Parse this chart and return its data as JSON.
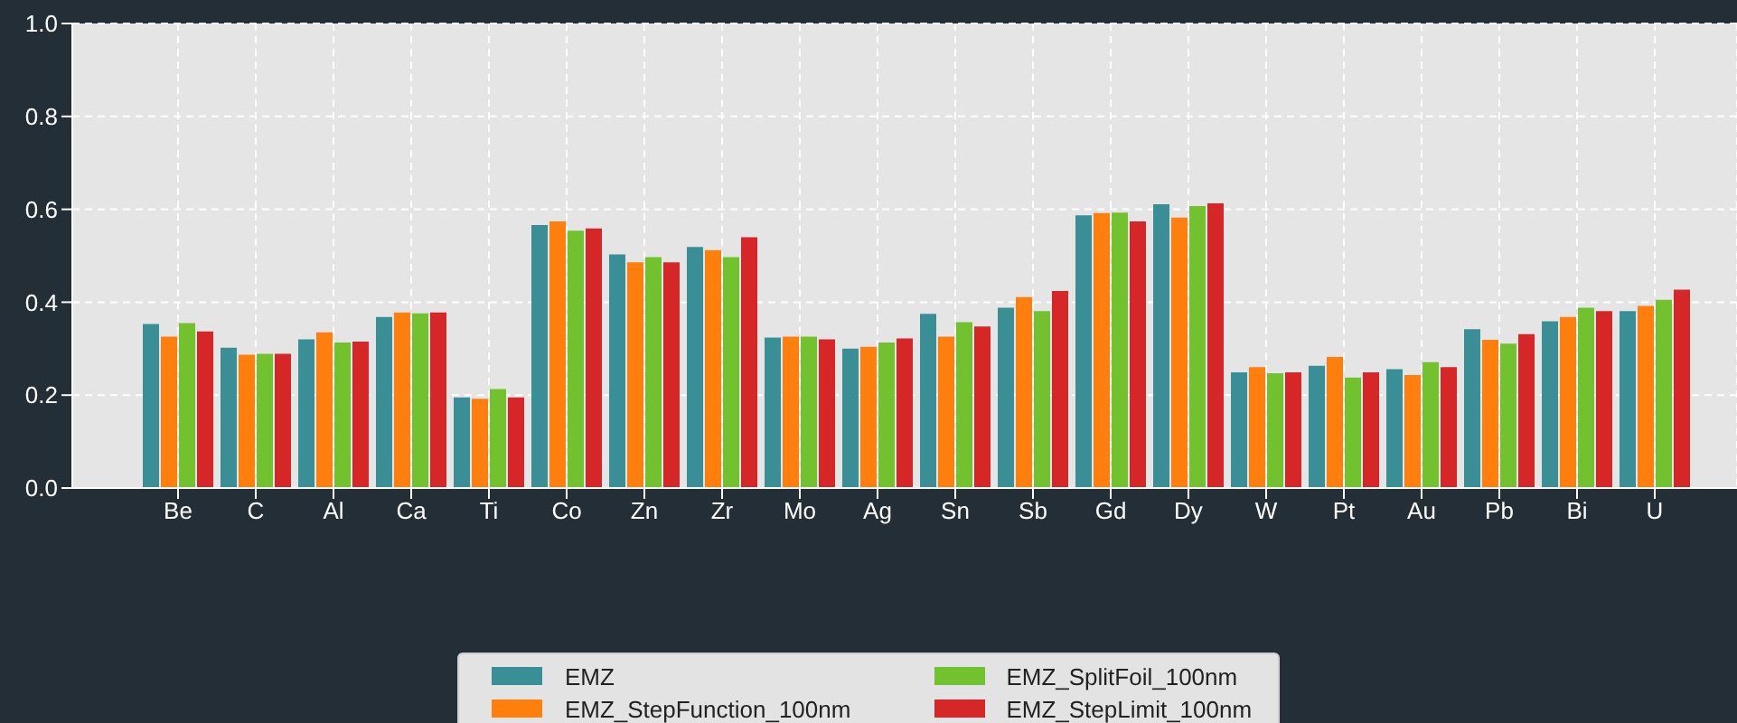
{
  "chart_data": {
    "type": "bar",
    "categories": [
      "Be",
      "C",
      "Al",
      "Ca",
      "Ti",
      "Co",
      "Zn",
      "Zr",
      "Mo",
      "Ag",
      "Sn",
      "Sb",
      "Gd",
      "Dy",
      "W",
      "Pt",
      "Au",
      "Pb",
      "Bi",
      "U"
    ],
    "series": [
      {
        "name": "EMZ",
        "color": "#3a8f96",
        "values": [
          0.353,
          0.302,
          0.32,
          0.368,
          0.195,
          0.566,
          0.503,
          0.519,
          0.324,
          0.3,
          0.375,
          0.388,
          0.587,
          0.611,
          0.249,
          0.263,
          0.256,
          0.342,
          0.359,
          0.381
        ]
      },
      {
        "name": "EMZ_StepFunction_100nm",
        "color": "#ff7f0e",
        "values": [
          0.326,
          0.287,
          0.335,
          0.378,
          0.192,
          0.574,
          0.486,
          0.512,
          0.326,
          0.304,
          0.326,
          0.411,
          0.592,
          0.582,
          0.26,
          0.282,
          0.243,
          0.319,
          0.368,
          0.392
        ]
      },
      {
        "name": "EMZ_SplitFoil_100nm",
        "color": "#72c12f",
        "values": [
          0.355,
          0.289,
          0.313,
          0.376,
          0.213,
          0.554,
          0.497,
          0.497,
          0.326,
          0.313,
          0.357,
          0.381,
          0.593,
          0.607,
          0.247,
          0.238,
          0.271,
          0.311,
          0.388,
          0.405
        ]
      },
      {
        "name": "EMZ_StepLimit_100nm",
        "color": "#d62728",
        "values": [
          0.337,
          0.289,
          0.315,
          0.378,
          0.195,
          0.559,
          0.486,
          0.54,
          0.32,
          0.322,
          0.348,
          0.424,
          0.574,
          0.613,
          0.249,
          0.249,
          0.26,
          0.331,
          0.381,
          0.427
        ]
      }
    ],
    "ylim": [
      0,
      1
    ],
    "yticks": [
      {
        "value": 0,
        "label": "0.0"
      },
      {
        "value": 0.2,
        "label": "0.2"
      },
      {
        "value": 0.4,
        "label": "0.4"
      },
      {
        "value": 0.6,
        "label": "0.6"
      },
      {
        "value": 0.8,
        "label": "0.8"
      },
      {
        "value": 1,
        "label": "1.0"
      }
    ],
    "grid": true,
    "legend": "bottom"
  }
}
